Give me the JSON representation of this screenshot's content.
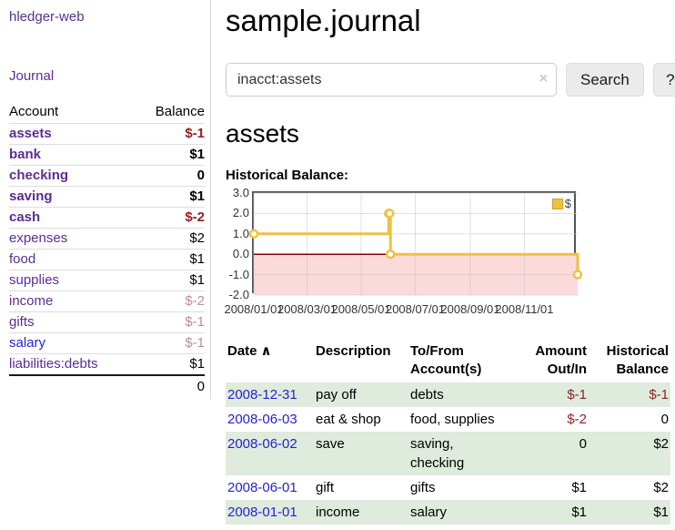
{
  "colors": {
    "purple": "#5c2d91",
    "blue": "#2323d2",
    "negative_red": "#8f2323",
    "rose": "#bc8f8f",
    "gold": "#edc240",
    "pink_region": "#fadada",
    "zero_line": "#8b0000",
    "green_stripe": "#dfebdd",
    "chart_border": "#545454"
  },
  "sidebar": {
    "app_title": "hledger-web",
    "journal_link": "Journal",
    "table": {
      "account_header": "Account",
      "balance_header": "Balance",
      "accounts": [
        {
          "name": "assets",
          "balance": "$-1"
        },
        {
          "name": "bank",
          "balance": "$1"
        },
        {
          "name": "checking",
          "balance": "0"
        },
        {
          "name": "saving",
          "balance": "$1"
        },
        {
          "name": "cash",
          "balance": "$-2"
        },
        {
          "name": "expenses",
          "balance": "$2"
        },
        {
          "name": "food",
          "balance": "$1"
        },
        {
          "name": "supplies",
          "balance": "$1"
        },
        {
          "name": "income",
          "balance": "$-2"
        },
        {
          "name": "gifts",
          "balance": "$-1"
        },
        {
          "name": "salary",
          "balance": "$-1"
        },
        {
          "name": "liabilities:debts",
          "balance": "$1"
        }
      ],
      "total": "0"
    }
  },
  "main": {
    "title": "sample.journal",
    "search": {
      "value": "inacct:assets",
      "clear_icon": "×",
      "search_button": "Search",
      "help_button": "?"
    },
    "account_heading": "assets",
    "chart_label": "Historical Balance:",
    "table": {
      "headers": {
        "date": "Date",
        "sort_icon": "∧",
        "description": "Description",
        "accounts": "To/From Account(s)",
        "amount": "Amount Out/In",
        "balance": "Historical Balance"
      },
      "rows": [
        {
          "date": "2008-12-31",
          "description": "pay off",
          "accounts": "debts",
          "amount": "$-1",
          "balance": "$-1"
        },
        {
          "date": "2008-06-03",
          "description": "eat & shop",
          "accounts": "food, supplies",
          "amount": "$-2",
          "balance": "0"
        },
        {
          "date": "2008-06-02",
          "description": "save",
          "accounts": "saving,\nchecking",
          "amount": "0",
          "balance": "$2"
        },
        {
          "date": "2008-06-01",
          "description": "gift",
          "accounts": "gifts",
          "amount": "$1",
          "balance": "$2"
        },
        {
          "date": "2008-01-01",
          "description": "income",
          "accounts": "salary",
          "amount": "$1",
          "balance": "$1"
        }
      ]
    }
  },
  "chart_data": {
    "type": "line",
    "step": true,
    "title": "Historical Balance",
    "x_range": [
      "2008/01/01",
      "2008/12/31"
    ],
    "ylim": [
      -2.0,
      3.0
    ],
    "yticks": [
      3.0,
      2.0,
      1.0,
      0.0,
      -1.0,
      -2.0
    ],
    "xticks": [
      "2008/01/01",
      "2008/03/01",
      "2008/05/01",
      "2008/07/01",
      "2008/09/01",
      "2008/11/01"
    ],
    "series": [
      {
        "name": "$",
        "color": "#edc240",
        "points": [
          [
            "2008/01/01",
            1
          ],
          [
            "2008/06/01",
            2
          ],
          [
            "2008/06/02",
            2
          ],
          [
            "2008/06/03",
            0
          ],
          [
            "2008/12/31",
            -1
          ]
        ]
      }
    ],
    "legend_position": "top-right",
    "grid": true,
    "negative_region_shaded": true
  }
}
